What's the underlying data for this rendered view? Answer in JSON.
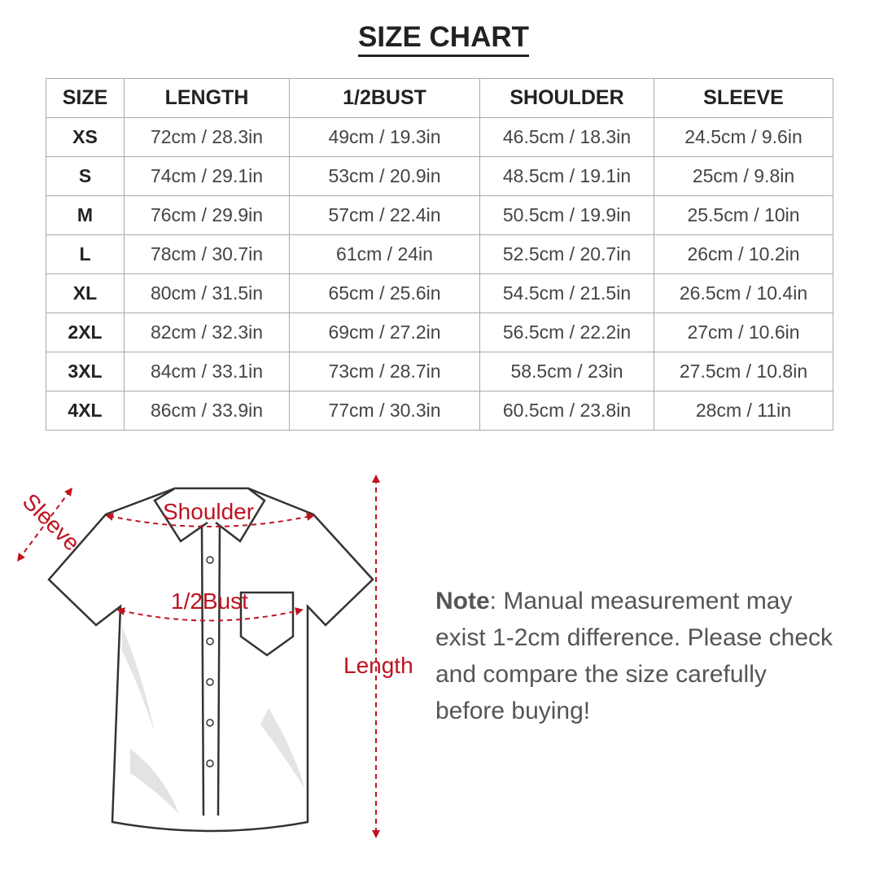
{
  "title": "SIZE CHART",
  "table": {
    "headers": [
      "SIZE",
      "LENGTH",
      "1/2BUST",
      "SHOULDER",
      "SLEEVE"
    ],
    "rows": [
      [
        "XS",
        "72cm / 28.3in",
        "49cm / 19.3in",
        "46.5cm / 18.3in",
        "24.5cm / 9.6in"
      ],
      [
        "S",
        "74cm / 29.1in",
        "53cm / 20.9in",
        "48.5cm / 19.1in",
        "25cm / 9.8in"
      ],
      [
        "M",
        "76cm / 29.9in",
        "57cm / 22.4in",
        "50.5cm / 19.9in",
        "25.5cm / 10in"
      ],
      [
        "L",
        "78cm / 30.7in",
        "61cm / 24in",
        "52.5cm / 20.7in",
        "26cm / 10.2in"
      ],
      [
        "XL",
        "80cm / 31.5in",
        "65cm / 25.6in",
        "54.5cm / 21.5in",
        "26.5cm / 10.4in"
      ],
      [
        "2XL",
        "82cm / 32.3in",
        "69cm / 27.2in",
        "56.5cm / 22.2in",
        "27cm / 10.6in"
      ],
      [
        "3XL",
        "84cm / 33.1in",
        "73cm / 28.7in",
        "58.5cm / 23in",
        "27.5cm / 10.8in"
      ],
      [
        "4XL",
        "86cm / 33.9in",
        "77cm / 30.3in",
        "60.5cm / 23.8in",
        "28cm / 11in"
      ]
    ]
  },
  "diagram": {
    "labels": {
      "sleeve": "Sleeve",
      "shoulder": "Shoulder",
      "bust": "1/2Bust",
      "length": "Length"
    },
    "accent_color": "#c0121f"
  },
  "note": {
    "label": "Note",
    "text": ": Manual measurement may exist 1-2cm difference. Please check and compare the size carefully before buying!"
  }
}
